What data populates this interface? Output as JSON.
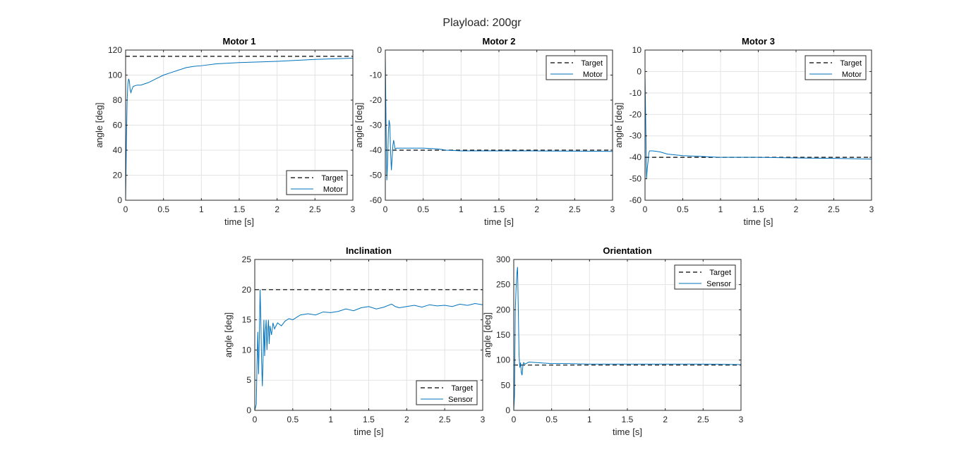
{
  "figure": {
    "title": "Playload: 200gr"
  },
  "chart_data": [
    {
      "type": "line",
      "title": "Motor 1",
      "xlabel": "time [s]",
      "ylabel": "angle [deg]",
      "xlim": [
        0,
        3
      ],
      "ylim": [
        0,
        120
      ],
      "xticks": [
        0,
        0.5,
        1,
        1.5,
        2,
        2.5,
        3
      ],
      "xtick_labels": [
        "0",
        "0.5",
        "1",
        "1.5",
        "2",
        "2.5",
        "3"
      ],
      "yticks": [
        0,
        20,
        40,
        60,
        80,
        100,
        120
      ],
      "ytick_labels": [
        "0",
        "20",
        "40",
        "60",
        "80",
        "100",
        "120"
      ],
      "grid": true,
      "legend_location": "bottom-right",
      "series": [
        {
          "name": "Target",
          "style": "dashed",
          "color": "#000000",
          "x": [
            0,
            3
          ],
          "y": [
            115,
            115
          ]
        },
        {
          "name": "Motor",
          "style": "solid",
          "color": "#0072BD",
          "x": [
            0,
            0.01,
            0.02,
            0.03,
            0.04,
            0.05,
            0.06,
            0.07,
            0.08,
            0.1,
            0.15,
            0.2,
            0.3,
            0.4,
            0.5,
            0.6,
            0.7,
            0.8,
            0.9,
            1.0,
            1.2,
            1.5,
            2.0,
            2.5,
            3.0
          ],
          "y": [
            0,
            45,
            80,
            93,
            97,
            95,
            88,
            86,
            88,
            91,
            92,
            92,
            94,
            97,
            100,
            102,
            104,
            106,
            107,
            107.5,
            109,
            110,
            111,
            112.5,
            113.5
          ]
        }
      ]
    },
    {
      "type": "line",
      "title": "Motor 2",
      "xlabel": "time [s]",
      "ylabel": "angle [deg]",
      "xlim": [
        0,
        3
      ],
      "ylim": [
        -60,
        0
      ],
      "xticks": [
        0,
        0.5,
        1,
        1.5,
        2,
        2.5,
        3
      ],
      "xtick_labels": [
        "0",
        "0.5",
        "1",
        "1.5",
        "2",
        "2.5",
        "3"
      ],
      "yticks": [
        -60,
        -50,
        -40,
        -30,
        -20,
        -10,
        0
      ],
      "ytick_labels": [
        "-60",
        "-50",
        "-40",
        "-30",
        "-20",
        "-10",
        "0"
      ],
      "grid": true,
      "legend_location": "top-right",
      "series": [
        {
          "name": "Target",
          "style": "dashed",
          "color": "#000000",
          "x": [
            0,
            3
          ],
          "y": [
            -40,
            -40
          ]
        },
        {
          "name": "Motor",
          "style": "solid",
          "color": "#0072BD",
          "x": [
            0,
            0.01,
            0.02,
            0.03,
            0.04,
            0.05,
            0.06,
            0.07,
            0.08,
            0.09,
            0.1,
            0.11,
            0.12,
            0.13,
            0.15,
            0.2,
            0.3,
            0.5,
            0.7,
            0.8,
            1.0,
            1.5,
            2.0,
            2.5,
            3.0
          ],
          "y": [
            -2,
            -30,
            -52,
            -45,
            -33,
            -28,
            -30,
            -41,
            -48,
            -43,
            -38,
            -36,
            -38,
            -39.5,
            -39.2,
            -39.2,
            -39.2,
            -39.2,
            -39.5,
            -40,
            -40.3,
            -40.3,
            -40.3,
            -40.4,
            -40.5
          ]
        }
      ]
    },
    {
      "type": "line",
      "title": "Motor 3",
      "xlabel": "time [s]",
      "ylabel": "angle [deg]",
      "xlim": [
        0,
        3
      ],
      "ylim": [
        -60,
        10
      ],
      "xticks": [
        0,
        0.5,
        1,
        1.5,
        2,
        2.5,
        3
      ],
      "xtick_labels": [
        "0",
        "0.5",
        "1",
        "1.5",
        "2",
        "2.5",
        "3"
      ],
      "yticks": [
        -60,
        -50,
        -40,
        -30,
        -20,
        -10,
        0,
        10
      ],
      "ytick_labels": [
        "-60",
        "-50",
        "-40",
        "-30",
        "-20",
        "-10",
        "0",
        "10"
      ],
      "grid": true,
      "legend_location": "top-right",
      "series": [
        {
          "name": "Target",
          "style": "dashed",
          "color": "#000000",
          "x": [
            0,
            3
          ],
          "y": [
            -40,
            -40
          ]
        },
        {
          "name": "Motor",
          "style": "solid",
          "color": "#0072BD",
          "x": [
            0,
            0.01,
            0.02,
            0.03,
            0.04,
            0.05,
            0.06,
            0.08,
            0.1,
            0.15,
            0.2,
            0.3,
            0.5,
            0.7,
            1.0,
            1.5,
            2.0,
            2.5,
            3.0
          ],
          "y": [
            -2,
            -25,
            -50,
            -45,
            -42,
            -38,
            -37,
            -37,
            -37,
            -37.2,
            -37.5,
            -38.5,
            -39.2,
            -39.5,
            -40,
            -40,
            -40.3,
            -40.5,
            -40.8
          ]
        }
      ]
    },
    {
      "type": "line",
      "title": "Inclination",
      "xlabel": "time [s]",
      "ylabel": "angle [deg]",
      "xlim": [
        0,
        3
      ],
      "ylim": [
        0,
        25
      ],
      "xticks": [
        0,
        0.5,
        1,
        1.5,
        2,
        2.5,
        3
      ],
      "xtick_labels": [
        "0",
        "0.5",
        "1",
        "1.5",
        "2",
        "2.5",
        "3"
      ],
      "yticks": [
        0,
        5,
        10,
        15,
        20,
        25
      ],
      "ytick_labels": [
        "0",
        "5",
        "10",
        "15",
        "20",
        "25"
      ],
      "grid": true,
      "legend_location": "bottom-right",
      "series": [
        {
          "name": "Target",
          "style": "dashed",
          "color": "#000000",
          "x": [
            0,
            3
          ],
          "y": [
            20,
            20
          ]
        },
        {
          "name": "Sensor",
          "style": "solid",
          "color": "#0072BD",
          "x": [
            0,
            0.02,
            0.03,
            0.04,
            0.05,
            0.06,
            0.07,
            0.08,
            0.09,
            0.1,
            0.11,
            0.12,
            0.13,
            0.14,
            0.15,
            0.16,
            0.17,
            0.18,
            0.19,
            0.2,
            0.22,
            0.24,
            0.26,
            0.28,
            0.3,
            0.35,
            0.4,
            0.45,
            0.5,
            0.6,
            0.7,
            0.8,
            0.9,
            1.0,
            1.1,
            1.2,
            1.3,
            1.4,
            1.5,
            1.6,
            1.7,
            1.8,
            1.85,
            1.9,
            2.0,
            2.1,
            2.2,
            2.3,
            2.4,
            2.5,
            2.6,
            2.7,
            2.8,
            2.9,
            3.0
          ],
          "y": [
            0,
            1,
            8,
            13,
            6,
            12,
            20,
            15,
            8,
            4,
            9,
            15,
            9,
            13,
            15,
            10,
            13,
            15,
            11,
            14,
            12.5,
            14.5,
            13.5,
            14,
            14.5,
            14,
            14.8,
            15.2,
            15,
            15.8,
            16,
            15.8,
            16.3,
            16.2,
            16.4,
            16.8,
            16.5,
            17,
            17.2,
            16.8,
            17.1,
            17.6,
            17.2,
            17.0,
            17.2,
            17.4,
            17.1,
            17.5,
            17.3,
            17.4,
            17.2,
            17.6,
            17.4,
            17.7,
            17.5
          ]
        }
      ]
    },
    {
      "type": "line",
      "title": "Orientation",
      "xlabel": "time [s]",
      "ylabel": "angle [deg]",
      "xlim": [
        0,
        3
      ],
      "ylim": [
        0,
        300
      ],
      "xticks": [
        0,
        0.5,
        1,
        1.5,
        2,
        2.5,
        3
      ],
      "xtick_labels": [
        "0",
        "0.5",
        "1",
        "1.5",
        "2",
        "2.5",
        "3"
      ],
      "yticks": [
        0,
        50,
        100,
        150,
        200,
        250,
        300
      ],
      "ytick_labels": [
        "0",
        "50",
        "100",
        "150",
        "200",
        "250",
        "300"
      ],
      "grid": true,
      "legend_location": "top-right",
      "series": [
        {
          "name": "Target",
          "style": "dashed",
          "color": "#000000",
          "x": [
            0,
            3
          ],
          "y": [
            90,
            90
          ]
        },
        {
          "name": "Sensor",
          "style": "solid",
          "color": "#0072BD",
          "x": [
            0,
            0.01,
            0.02,
            0.03,
            0.04,
            0.05,
            0.06,
            0.07,
            0.08,
            0.09,
            0.1,
            0.11,
            0.12,
            0.13,
            0.15,
            0.2,
            0.3,
            0.4,
            0.5,
            0.7,
            1.0,
            1.5,
            2.0,
            2.5,
            3.0
          ],
          "y": [
            0,
            30,
            200,
            240,
            270,
            285,
            200,
            110,
            85,
            95,
            75,
            70,
            88,
            95,
            92,
            96,
            95,
            94,
            93,
            93,
            92,
            92,
            92,
            92,
            91
          ]
        }
      ]
    }
  ]
}
